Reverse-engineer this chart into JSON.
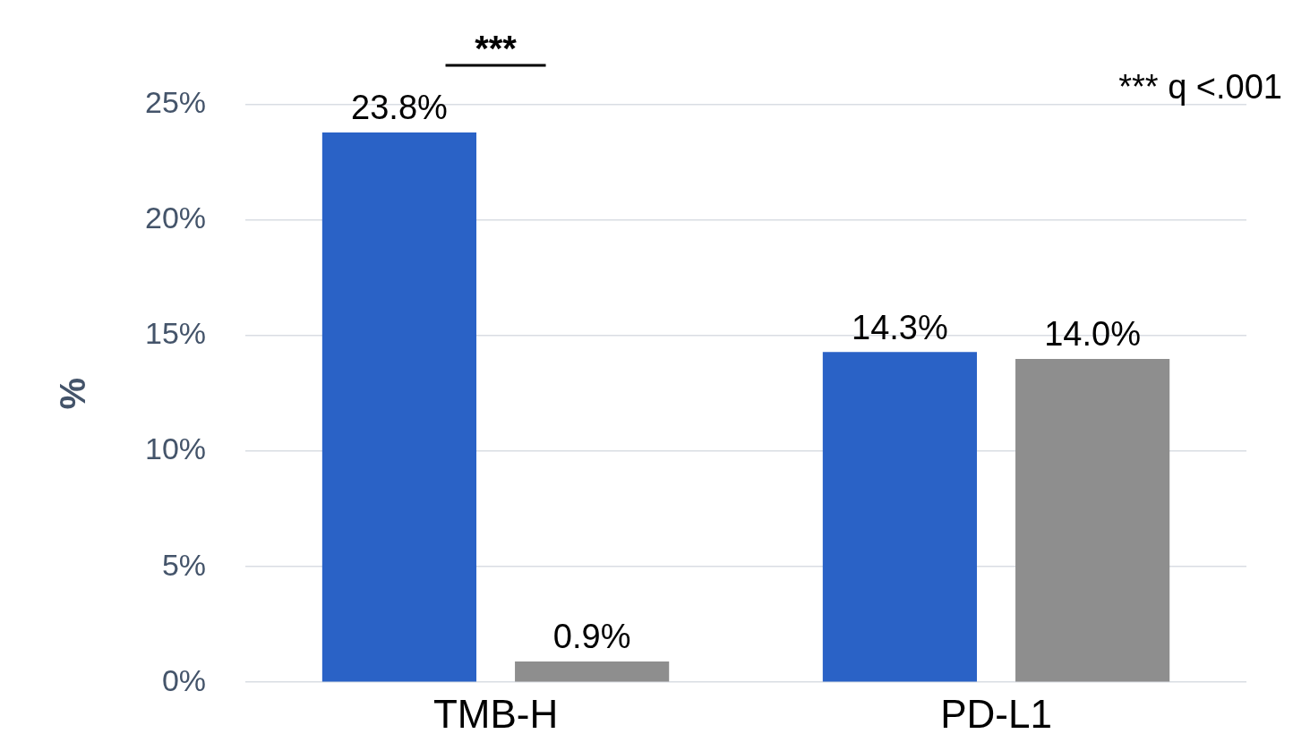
{
  "chart_data": {
    "type": "bar",
    "ylabel": "%",
    "categories": [
      "TMB-H",
      "PD-L1"
    ],
    "series": [
      {
        "color": "#2a62c6",
        "values": [
          23.8,
          14.3
        ],
        "value_labels": [
          "23.8%",
          "14.3%"
        ]
      },
      {
        "color": "#8e8e8e",
        "values": [
          0.9,
          14.0
        ],
        "value_labels": [
          "0.9%",
          "14.0%"
        ]
      }
    ],
    "ylim": [
      0,
      25
    ],
    "yticks": [
      {
        "value": 0,
        "label": "0%"
      },
      {
        "value": 5,
        "label": "5%"
      },
      {
        "value": 10,
        "label": "10%"
      },
      {
        "value": 15,
        "label": "15%"
      },
      {
        "value": 20,
        "label": "20%"
      },
      {
        "value": 25,
        "label": "25%"
      }
    ],
    "grid": "y",
    "legend": false,
    "annotations": [
      "***",
      "*** q <.001"
    ]
  }
}
